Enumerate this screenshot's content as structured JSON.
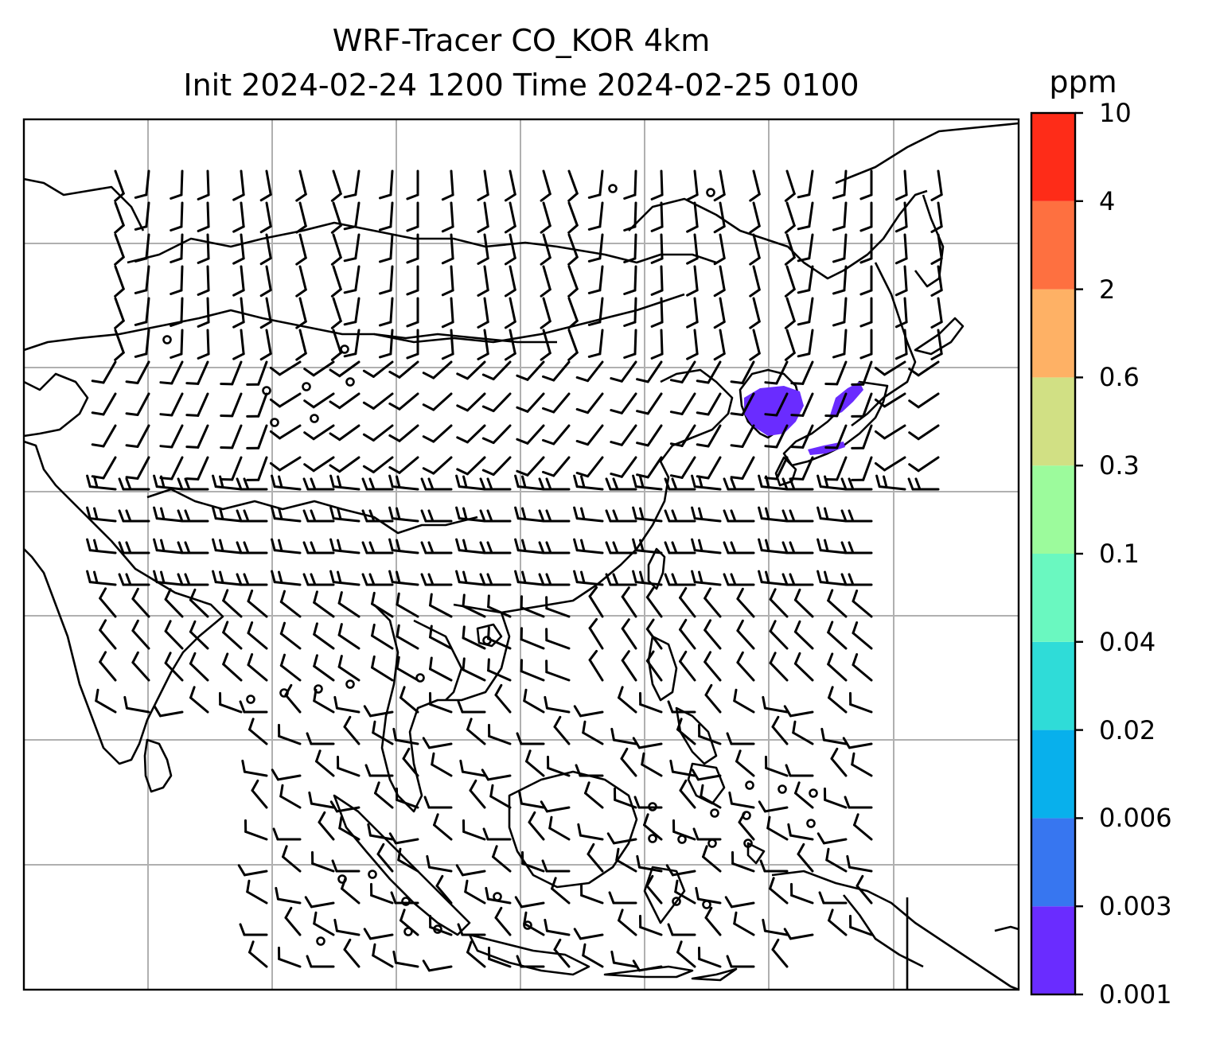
{
  "title": {
    "line1": "WRF-Tracer CO_KOR 4km",
    "line2": "Init 2024-02-24 1200 Time 2024-02-25 0100"
  },
  "colorbar": {
    "unit": "ppm",
    "levels": [
      "0.001",
      "0.003",
      "0.006",
      "0.02",
      "0.04",
      "0.1",
      "0.3",
      "0.6",
      "2",
      "4",
      "10"
    ],
    "colors": [
      "#6a2cff",
      "#3776f0",
      "#08b0ec",
      "#2fdcd8",
      "#6af8c0",
      "#9cfb9c",
      "#d1e084",
      "#feb165",
      "#fe7040",
      "#fe2c18"
    ]
  },
  "map": {
    "plume_color": "#6a2cff",
    "grid_color": "#b0b0b0"
  }
}
